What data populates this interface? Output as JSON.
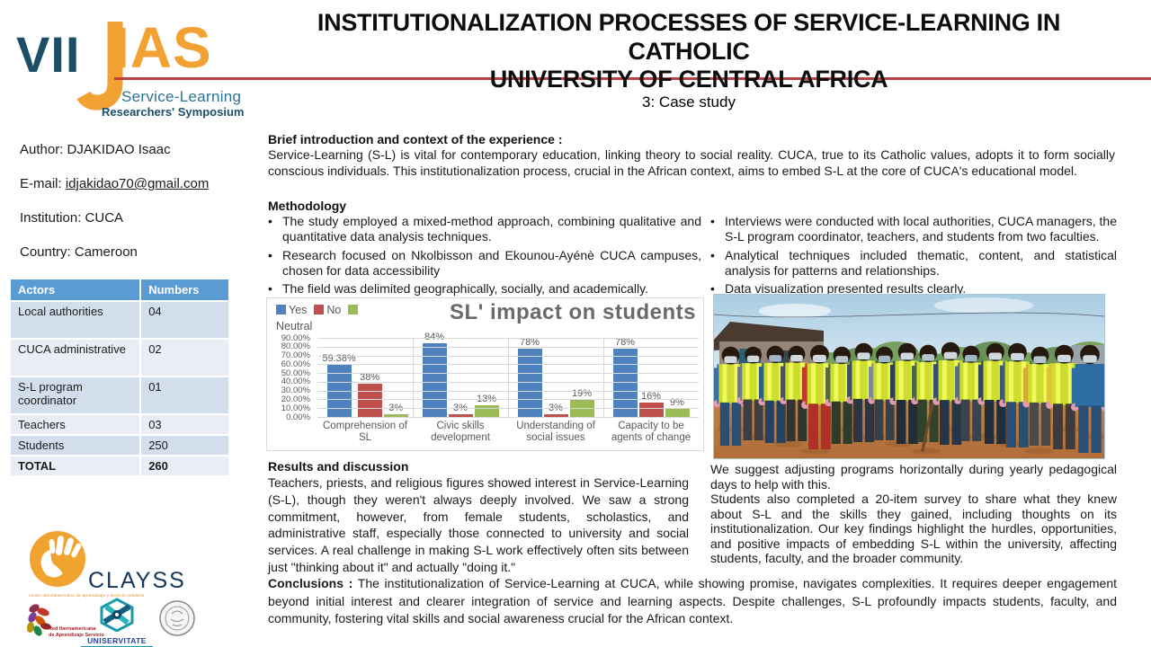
{
  "header": {
    "logo": {
      "vii": "VII",
      "ias": "IAS",
      "sub1": "Service-Learning",
      "sub2": "Researchers' Symposium"
    },
    "title_line1": "INSTITUTIONALIZATION PROCESSES OF SERVICE-LEARNING IN CATHOLIC",
    "title_line2": "UNIVERSITY OF CENTRAL AFRICA",
    "subtitle": "3: Case study"
  },
  "author_panel": {
    "author": "Author: DJAKIDAO Isaac",
    "email_label": "E-mail: ",
    "email": "idjakidao70@gmail.com",
    "institution": "Institution: CUCA",
    "country": "Country: Cameroon"
  },
  "actors_table": {
    "headers": [
      "Actors",
      "Numbers"
    ],
    "rows": [
      {
        "actor": "Local authorities",
        "number": "04",
        "bold": false,
        "tall": true
      },
      {
        "actor": "CUCA administrative",
        "number": "02",
        "bold": false,
        "tall": true
      },
      {
        "actor": "S-L program coordinator",
        "number": "01",
        "bold": false,
        "tall": true
      },
      {
        "actor": "Teachers",
        "number": "03",
        "bold": false,
        "tall": false
      },
      {
        "actor": "Students",
        "number": "250",
        "bold": false,
        "tall": false
      },
      {
        "actor": "TOTAL",
        "number": "260",
        "bold": true,
        "tall": false
      }
    ]
  },
  "sections": {
    "intro_heading": "Brief introduction and context of the experience :",
    "intro_text": "Service-Learning (S-L) is vital for contemporary education, linking theory to social reality. CUCA, true to its Catholic values, adopts it to form socially conscious individuals. This institutionalization process, crucial in the African context, aims to embed S-L at the core of CUCA's educational model.",
    "methodology_heading": "Methodology",
    "methodology_left": [
      "The study employed a mixed-method approach, combining qualitative and quantitative data analysis techniques.",
      "Research focused on Nkolbisson and Ekounou-Ayénè CUCA campuses, chosen for data accessibility",
      "The field was delimited geographically, socially, and academically."
    ],
    "methodology_right": [
      "Interviews were conducted with local authorities, CUCA managers, the S-L program coordinator, teachers, and students from two faculties.",
      "Analytical techniques included thematic, content, and statistical analysis for patterns and relationships.",
      "Data visualization presented results clearly."
    ],
    "results_heading": "Results and discussion",
    "results_text": "Teachers, priests, and religious figures showed interest in Service-Learning (S-L), though they weren't always deeply involved. We saw a strong commitment, however, from female students, scholastics, and administrative staff, especially those connected to university and social services. A real challenge in making S-L work effectively often sits between just \"thinking about it\" and actually \"doing it.\"",
    "right_text_1": "We suggest adjusting programs horizontally during yearly pedagogical days to help with this.",
    "right_text_2": "Students also completed a 20-item survey to share what they knew about S-L and the skills they gained, including thoughts on its institutionalization. Our key findings highlight the hurdles, opportunities, and positive impacts of embedding S-L within the university, affecting students, faculty, and the broader community.",
    "conclusions_heading": "Conclusions :",
    "conclusions_text": "The institutionalization of Service-Learning at CUCA, while showing promise, navigates complexities. It requires deeper engagement beyond initial interest and clearer integration of service and learning aspects. Despite challenges, S-L profoundly impacts students, faculty, and community, fostering vital skills and social awareness crucial for the African context."
  },
  "chart_data": {
    "type": "bar",
    "title": "SL' impact on students",
    "categories": [
      "Comprehension of SL",
      "Civic skills development",
      "Understanding of social issues",
      "Capacity to be agents of change"
    ],
    "series": [
      {
        "name": "Yes",
        "color": "#4f81bd",
        "values": [
          59.38,
          84,
          78,
          78
        ],
        "labels": [
          "59.38%",
          "84%",
          "78%",
          "78%"
        ]
      },
      {
        "name": "No",
        "color": "#c0504d",
        "values": [
          38,
          3,
          3,
          16
        ],
        "labels": [
          "38%",
          "3%",
          "3%",
          "16%"
        ]
      },
      {
        "name": "Neutral",
        "color": "#9bbb59",
        "values": [
          3,
          13,
          19,
          9
        ],
        "labels": [
          "3%",
          "13%",
          "19%",
          "9%"
        ]
      }
    ],
    "y_ticks": [
      "90.00%",
      "80.00%",
      "70.00%",
      "60.00%",
      "50.00%",
      "40.00%",
      "30.00%",
      "20.00%",
      "10.00%",
      "0.00%"
    ],
    "ylim": [
      0,
      90
    ],
    "grid": true,
    "legend_position": "top-left",
    "xlabel": "",
    "ylabel": ""
  },
  "photo": {
    "alt": "Group of about twenty volunteers wearing yellow high-visibility vests, face masks and pink gloves standing on an orange dirt road beside a building"
  },
  "footer_logos": {
    "clayss": "CLAYSS",
    "clayss_tagline": "centro latinoamericano de aprendizaje y servicio solidario",
    "red_network_line1": "Red Iberoamericana",
    "red_network_line2": "de Aprendizaje Servicio",
    "uniservitate": "UNISERVITATE"
  },
  "colors": {
    "accent_line": "#b94141",
    "table_header": "#5b9bd5",
    "row_dark": "#d2deec",
    "row_light": "#e9eef6",
    "logo_blue": "#1c4f66",
    "logo_orange": "#f2a233"
  }
}
